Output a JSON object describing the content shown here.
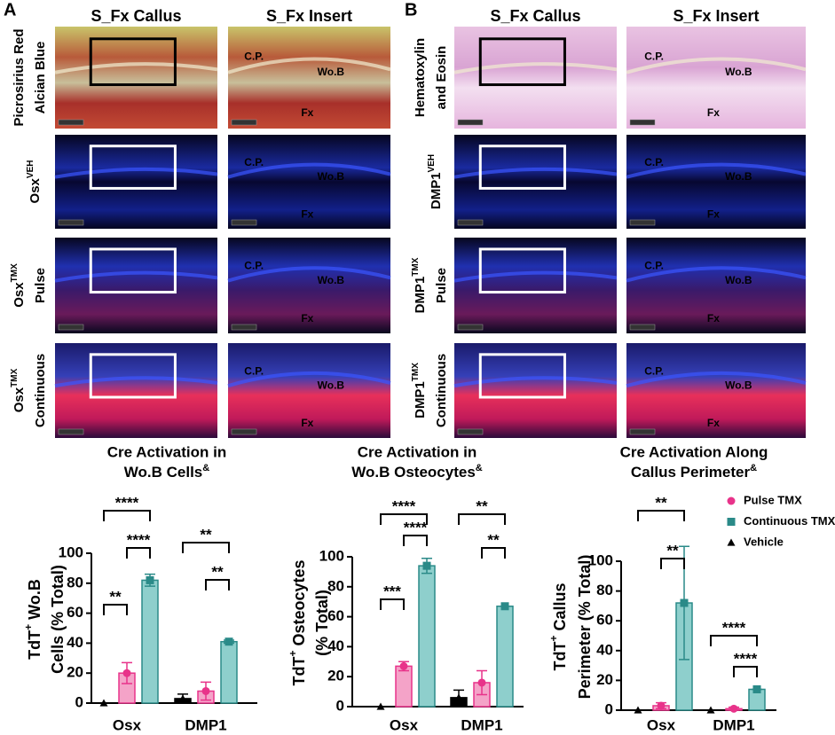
{
  "panels": [
    {
      "letter": "A",
      "columns": [
        "S_Fx Callus",
        "S_Fx Insert"
      ],
      "rows": [
        {
          "main": "Picrosirius Red",
          "line2": "Alcian Blue",
          "insert_labels": [
            "C.P.",
            "Wo.B",
            "Fx"
          ]
        },
        {
          "main": "Osx",
          "sup": "VEH",
          "insert_labels": [
            "C.P.",
            "Wo.B",
            "Fx"
          ]
        },
        {
          "main": "Osx",
          "sup": "TMX",
          "line2": "Pulse",
          "insert_labels": [
            "C.P.",
            "Wo.B",
            "Fx"
          ]
        },
        {
          "main": "Osx",
          "sup": "TMX",
          "line2": "Continuous",
          "insert_labels": [
            "C.P.",
            "Wo.B",
            "Fx"
          ]
        }
      ]
    },
    {
      "letter": "B",
      "columns": [
        "S_Fx Callus",
        "S_Fx Insert"
      ],
      "rows": [
        {
          "main": "Hematoxylin",
          "line2": "and Eosin",
          "insert_labels": [
            "C.P.",
            "Wo.B",
            "Fx"
          ]
        },
        {
          "main": "DMP1",
          "sup": "VEH",
          "insert_labels": [
            "C.P.",
            "Wo.B",
            "Fx"
          ]
        },
        {
          "main": "DMP1",
          "sup": "TMX",
          "line2": "Pulse",
          "insert_labels": [
            "C.P.",
            "Wo.B",
            "Fx"
          ]
        },
        {
          "main": "DMP1",
          "sup": "TMX",
          "line2": "Continuous",
          "insert_labels": [
            "C.P.",
            "Wo.B",
            "Fx"
          ]
        }
      ]
    }
  ],
  "legend": [
    {
      "name": "Pulse TMX",
      "color": "#e8338a",
      "fill": "#f4a3c8",
      "marker": "circle"
    },
    {
      "name": "Continuous TMX",
      "color": "#2a8a88",
      "fill": "#8ecfcc",
      "marker": "square"
    },
    {
      "name": "Vehicle",
      "color": "#000000",
      "fill": "#000000",
      "marker": "triangle"
    }
  ],
  "chart_data": [
    {
      "type": "bar",
      "title": {
        "line1": "Cre Activation in",
        "line2": "Wo.B Cells",
        "sup": "&"
      },
      "ylabel": {
        "line1": "TdT",
        "sup": "+",
        "rest": " Wo.B",
        "line2": "Cells (% Total)"
      },
      "categories": [
        "Osx",
        "DMP1"
      ],
      "series": [
        {
          "values": [
            20,
            8
          ],
          "errors": [
            7,
            6
          ]
        },
        {
          "values": [
            82,
            41
          ],
          "errors": [
            4,
            1
          ]
        },
        {
          "values": [
            0,
            3
          ],
          "errors": [
            0,
            3
          ]
        }
      ],
      "ylim": [
        0,
        100
      ],
      "yticks": [
        0,
        20,
        40,
        60,
        80,
        100
      ],
      "significance": [
        "****",
        "****",
        "**",
        "**",
        "**"
      ]
    },
    {
      "type": "bar",
      "title": {
        "line1": "Cre Activation in",
        "line2": "Wo.B Osteocytes",
        "sup": "&"
      },
      "ylabel": {
        "line1": "TdT",
        "sup": "+",
        "rest": " Osteocytes",
        "line2": "(% Total)"
      },
      "categories": [
        "Osx",
        "DMP1"
      ],
      "series": [
        {
          "values": [
            27,
            16
          ],
          "errors": [
            3,
            8
          ]
        },
        {
          "values": [
            94,
            67
          ],
          "errors": [
            5,
            0
          ]
        },
        {
          "values": [
            0,
            6
          ],
          "errors": [
            0,
            5
          ]
        }
      ],
      "ylim": [
        0,
        100
      ],
      "yticks": [
        0,
        20,
        40,
        60,
        80,
        100
      ],
      "significance": [
        "****",
        "****",
        "***",
        "**",
        "**"
      ]
    },
    {
      "type": "bar",
      "title": {
        "line1": "Cre Activation Along",
        "line2": "Callus Perimeter",
        "sup": "&"
      },
      "ylabel": {
        "line1": "TdT",
        "sup": "+",
        "rest": " Callus",
        "line2": "Perimeter (% Total)"
      },
      "categories": [
        "Osx",
        "DMP1"
      ],
      "series": [
        {
          "values": [
            3,
            1
          ],
          "errors": [
            2,
            1
          ]
        },
        {
          "values": [
            72,
            14
          ],
          "errors": [
            38,
            0
          ]
        },
        {
          "values": [
            0,
            0
          ],
          "errors": [
            0,
            0
          ]
        }
      ],
      "ylim": [
        0,
        100
      ],
      "yticks": [
        0,
        20,
        40,
        60,
        80,
        100
      ],
      "significance": [
        "**",
        "**",
        "****",
        "****"
      ]
    }
  ]
}
